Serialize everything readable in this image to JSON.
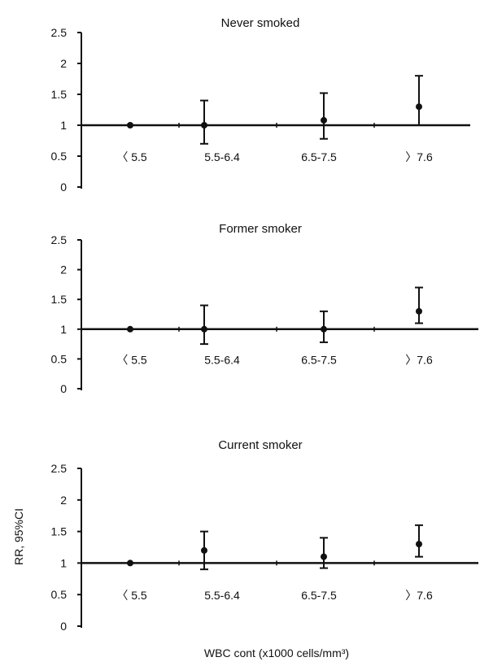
{
  "ylabel": "RR, 95%CI",
  "xlabel": "WBC cont (x1000 cells/mm³)",
  "chart_data": [
    {
      "type": "scatter",
      "title": "Never smoked",
      "categories": [
        "〈 5.5",
        "5.5-6.4",
        "6.5-7.5",
        "〉7.6"
      ],
      "ylim": [
        0,
        2.5
      ],
      "yticks": [
        "0",
        "0.5",
        "1",
        "1.5",
        "2",
        "2.5"
      ],
      "reference_line": 1,
      "series": [
        {
          "values": [
            1.0,
            1.0,
            1.08,
            1.3
          ],
          "ci_low": [
            1.0,
            0.7,
            0.78,
            1.0
          ],
          "ci_high": [
            1.0,
            1.4,
            1.52,
            1.8
          ]
        }
      ]
    },
    {
      "type": "scatter",
      "title": "Former smoker",
      "categories": [
        "〈 5.5",
        "5.5-6.4",
        "6.5-7.5",
        "〉7.6"
      ],
      "ylim": [
        0,
        2.5
      ],
      "yticks": [
        "0",
        "0.5",
        "1",
        "1.5",
        "2",
        "2.5"
      ],
      "reference_line": 1,
      "series": [
        {
          "values": [
            1.0,
            1.0,
            1.0,
            1.3
          ],
          "ci_low": [
            1.0,
            0.75,
            0.78,
            1.1
          ],
          "ci_high": [
            1.0,
            1.4,
            1.3,
            1.7
          ]
        }
      ]
    },
    {
      "type": "scatter",
      "title": "Current smoker",
      "categories": [
        "〈 5.5",
        "5.5-6.4",
        "6.5-7.5",
        "〉7.6"
      ],
      "ylim": [
        0,
        2.5
      ],
      "yticks": [
        "0",
        "0.5",
        "1",
        "1.5",
        "2",
        "2.5"
      ],
      "reference_line": 1,
      "series": [
        {
          "values": [
            1.0,
            1.2,
            1.1,
            1.3
          ],
          "ci_low": [
            1.0,
            0.9,
            0.92,
            1.1
          ],
          "ci_high": [
            1.0,
            1.5,
            1.4,
            1.6
          ]
        }
      ]
    }
  ]
}
